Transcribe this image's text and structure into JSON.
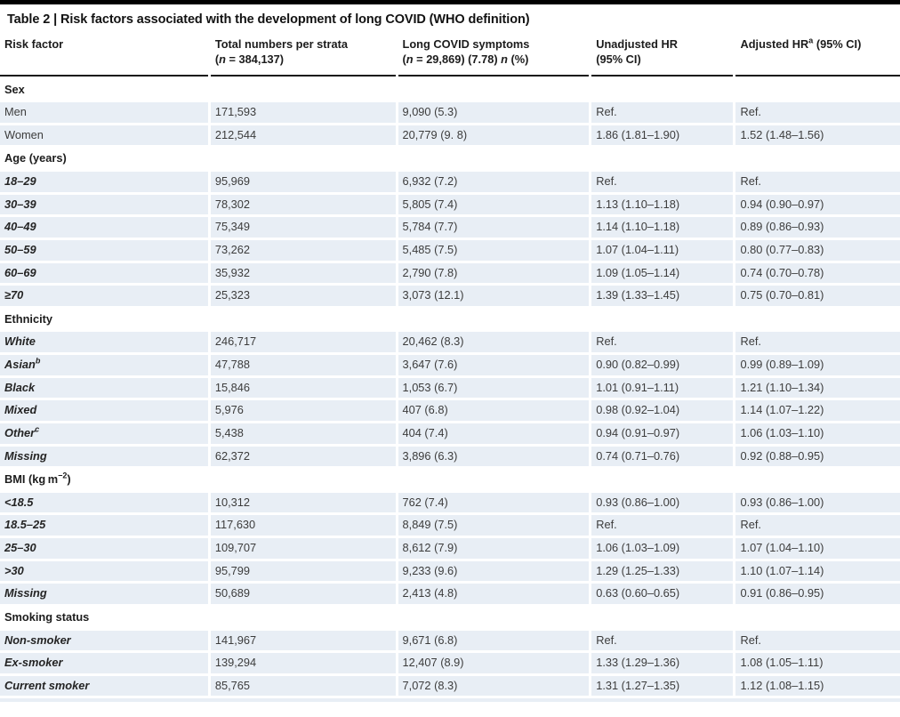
{
  "table": {
    "title_html": "Table 2 | Risk factors associated with the development of long COVID (WHO definition)",
    "columns": [
      {
        "label_html": "Risk factor"
      },
      {
        "label_html": "Total numbers per strata<br>(<i>n</i> = 384,137)"
      },
      {
        "label_html": "Long COVID symptoms<br>(<i>n</i> = 29,869) (7.78) <i>n</i> (%)"
      },
      {
        "label_html": "Unadjusted HR<br>(95% CI)"
      },
      {
        "label_html": "Adjusted HR<sup>a</sup> (95% CI)"
      }
    ],
    "sections": [
      {
        "label_html": "Sex",
        "rows": [
          {
            "label_html": "Men",
            "style": "regular",
            "total": "171,593",
            "symptoms": "9,090 (5.3)",
            "unadjusted": "Ref.",
            "adjusted": "Ref."
          },
          {
            "label_html": "Women",
            "style": "regular",
            "total": "212,544",
            "symptoms": "20,779 (9. 8)",
            "unadjusted": "1.86 (1.81–1.90)",
            "adjusted": "1.52 (1.48–1.56)"
          }
        ]
      },
      {
        "label_html": "Age (years)",
        "rows": [
          {
            "label_html": "18–29",
            "style": "emph",
            "total": "95,969",
            "symptoms": "6,932 (7.2)",
            "unadjusted": "Ref.",
            "adjusted": "Ref."
          },
          {
            "label_html": "30–39",
            "style": "emph",
            "total": "78,302",
            "symptoms": "5,805 (7.4)",
            "unadjusted": "1.13 (1.10–1.18)",
            "adjusted": "0.94 (0.90–0.97)"
          },
          {
            "label_html": "40–49",
            "style": "emph",
            "total": "75,349",
            "symptoms": "5,784 (7.7)",
            "unadjusted": "1.14 (1.10–1.18)",
            "adjusted": "0.89 (0.86–0.93)"
          },
          {
            "label_html": "50–59",
            "style": "emph",
            "total": "73,262",
            "symptoms": "5,485 (7.5)",
            "unadjusted": "1.07 (1.04–1.11)",
            "adjusted": "0.80 (0.77–0.83)"
          },
          {
            "label_html": "60–69",
            "style": "emph",
            "total": "35,932",
            "symptoms": "2,790 (7.8)",
            "unadjusted": "1.09 (1.05–1.14)",
            "adjusted": "0.74 (0.70–0.78)"
          },
          {
            "label_html": "≥70",
            "style": "emph",
            "total": "25,323",
            "symptoms": "3,073 (12.1)",
            "unadjusted": "1.39 (1.33–1.45)",
            "adjusted": "0.75 (0.70–0.81)"
          }
        ]
      },
      {
        "label_html": "Ethnicity",
        "rows": [
          {
            "label_html": "White",
            "style": "emph",
            "total": "246,717",
            "symptoms": "20,462 (8.3)",
            "unadjusted": "Ref.",
            "adjusted": "Ref."
          },
          {
            "label_html": "Asian<sup>b</sup>",
            "style": "emph",
            "total": "47,788",
            "symptoms": "3,647 (7.6)",
            "unadjusted": "0.90 (0.82–0.99)",
            "adjusted": "0.99 (0.89–1.09)"
          },
          {
            "label_html": "Black",
            "style": "emph",
            "total": "15,846",
            "symptoms": "1,053 (6.7)",
            "unadjusted": "1.01 (0.91–1.11)",
            "adjusted": "1.21 (1.10–1.34)"
          },
          {
            "label_html": "Mixed",
            "style": "emph",
            "total": "5,976",
            "symptoms": "407 (6.8)",
            "unadjusted": "0.98 (0.92–1.04)",
            "adjusted": "1.14 (1.07–1.22)"
          },
          {
            "label_html": "Other<sup>c</sup>",
            "style": "emph",
            "total": "5,438",
            "symptoms": "404 (7.4)",
            "unadjusted": "0.94 (0.91–0.97)",
            "adjusted": "1.06 (1.03–1.10)"
          },
          {
            "label_html": "Missing",
            "style": "emph",
            "total": "62,372",
            "symptoms": "3,896 (6.3)",
            "unadjusted": "0.74 (0.71–0.76)",
            "adjusted": "0.92 (0.88–0.95)"
          }
        ]
      },
      {
        "label_html": "BMI (kg m<sup>−2</sup>)",
        "rows": [
          {
            "label_html": "&lt;18.5",
            "style": "emph",
            "total": "10,312",
            "symptoms": "762 (7.4)",
            "unadjusted": "0.93 (0.86–1.00)",
            "adjusted": "0.93 (0.86–1.00)"
          },
          {
            "label_html": "18.5–25",
            "style": "emph",
            "total": "117,630",
            "symptoms": "8,849 (7.5)",
            "unadjusted": "Ref.",
            "adjusted": "Ref."
          },
          {
            "label_html": "25–30",
            "style": "emph",
            "total": "109,707",
            "symptoms": "8,612 (7.9)",
            "unadjusted": "1.06 (1.03–1.09)",
            "adjusted": "1.07 (1.04–1.10)"
          },
          {
            "label_html": "&gt;30",
            "style": "emph",
            "total": "95,799",
            "symptoms": "9,233 (9.6)",
            "unadjusted": "1.29 (1.25–1.33)",
            "adjusted": "1.10 (1.07–1.14)"
          },
          {
            "label_html": "Missing",
            "style": "emph",
            "total": "50,689",
            "symptoms": "2,413 (4.8)",
            "unadjusted": "0.63 (0.60–0.65)",
            "adjusted": "0.91 (0.86–0.95)"
          }
        ]
      },
      {
        "label_html": "Smoking status",
        "rows": [
          {
            "label_html": "Non-smoker",
            "style": "emph",
            "total": "141,967",
            "symptoms": "9,671 (6.8)",
            "unadjusted": "Ref.",
            "adjusted": "Ref."
          },
          {
            "label_html": "Ex-smoker",
            "style": "emph",
            "total": "139,294",
            "symptoms": "12,407 (8.9)",
            "unadjusted": "1.33 (1.29–1.36)",
            "adjusted": "1.08 (1.05–1.11)"
          },
          {
            "label_html": "Current smoker",
            "style": "emph",
            "total": "85,765",
            "symptoms": "7,072 (8.3)",
            "unadjusted": "1.31 (1.27–1.35)",
            "adjusted": "1.12 (1.08–1.15)"
          }
        ]
      }
    ]
  },
  "colors": {
    "row_shade": "#e8eef5",
    "header_rule": "#161616",
    "top_rule": "#000000",
    "body_text": "#3c3c3c",
    "label_text": "#1c1c1c"
  }
}
